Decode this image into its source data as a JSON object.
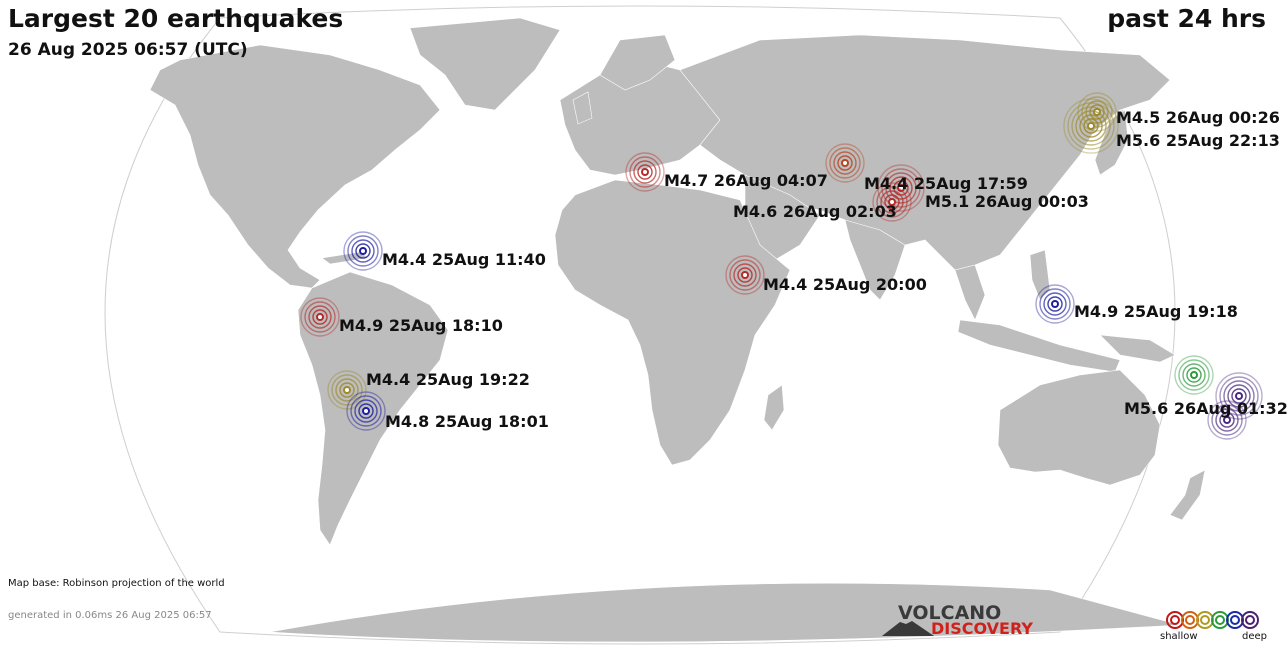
{
  "header": {
    "title": "Largest 20 earthquakes",
    "timestamp": "26 Aug 2025 06:57 (UTC)",
    "period": "past 24 hrs"
  },
  "quakes": [
    {
      "label": "M4.5 26Aug 00:26",
      "depth_color": "#9c8a2a"
    },
    {
      "label": "M5.6 25Aug 22:13",
      "depth_color": "#9c8a2a"
    },
    {
      "label": "M4.4 25Aug 17:59",
      "depth_color": "#b84420"
    },
    {
      "label": "M4.7 26Aug 04:07",
      "depth_color": "#b52a2a"
    },
    {
      "label": "M5.1 26Aug 00:03",
      "depth_color": "#b52a2a"
    },
    {
      "label": "M4.6 26Aug 02:03",
      "depth_color": "#b52a2a"
    },
    {
      "label": "M4.4 25Aug 11:40",
      "depth_color": "#1e1ea0"
    },
    {
      "label": "M4.4 25Aug 20:00",
      "depth_color": "#b52a2a"
    },
    {
      "label": "M4.9 25Aug 19:18",
      "depth_color": "#1e1ea0"
    },
    {
      "label": "M4.9 25Aug 18:10",
      "depth_color": "#b52a2a"
    },
    {
      "label": "M4.4 25Aug 19:22",
      "depth_color": "#9c8a2a"
    },
    {
      "label": "M4.8 25Aug 18:01",
      "depth_color": "#1e1ea0"
    },
    {
      "label": "M5.6 26Aug 01:32",
      "depth_color": "#4a2a80"
    }
  ],
  "unlabeled_quakes": [
    {
      "depth_color": "#2a9a3a"
    },
    {
      "depth_color": "#4a2a80"
    }
  ],
  "footer": {
    "map_base": "Map base: Robinson projection of the world",
    "generated": "generated in 0.06ms 26 Aug 2025 06:57"
  },
  "logo": {
    "line1": "VOLCANO",
    "line2": "DISCOVERY"
  },
  "legend": {
    "shallow": "shallow",
    "deep": "deep",
    "colors": [
      "#c01818",
      "#d06010",
      "#b09a20",
      "#2a9a3a",
      "#1a2aa8",
      "#4a2070"
    ]
  }
}
